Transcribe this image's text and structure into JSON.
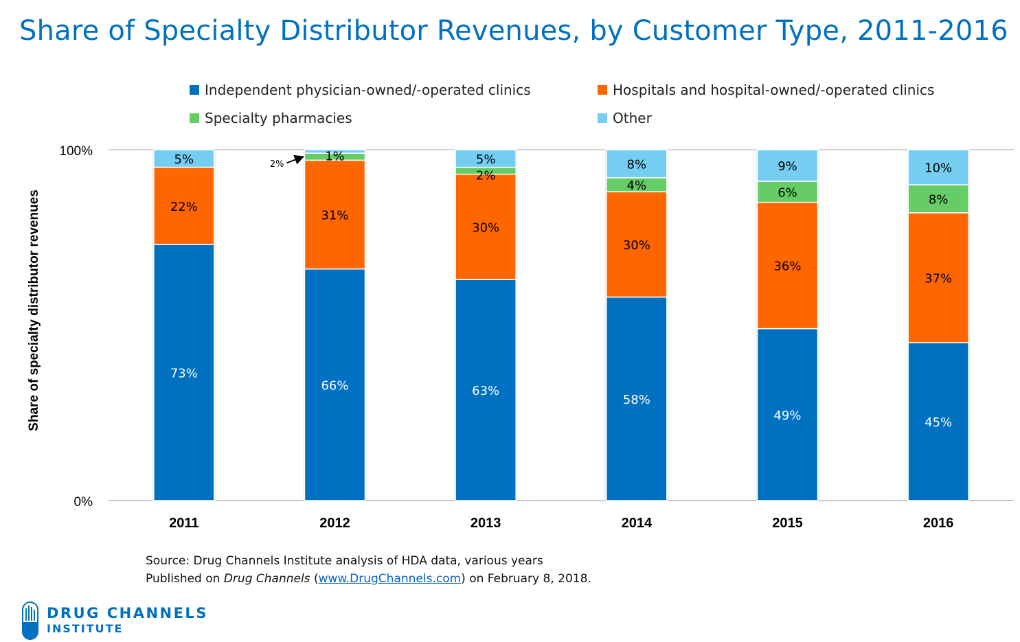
{
  "title": "Share of Specialty Distributor Revenues, by Customer Type, 2011-2016",
  "colors": {
    "independent": "#0070c0",
    "hospitals": "#ff6600",
    "specialty": "#66cc66",
    "other": "#75cdf2",
    "title": "#0070c0"
  },
  "chart_data": {
    "type": "bar",
    "stacked": true,
    "title": "Share of Specialty Distributor Revenues, by Customer Type, 2011-2016",
    "xlabel": "",
    "ylabel": "Share of specialty distributor revenues",
    "ylim": [
      0,
      100
    ],
    "y_ticks": [
      "0%",
      "100%"
    ],
    "categories": [
      "2011",
      "2012",
      "2013",
      "2014",
      "2015",
      "2016"
    ],
    "legend_position": "top",
    "series": [
      {
        "name": "Independent physician-owned/-operated clinics",
        "color": "#0070c0",
        "label_color": "#ffffff",
        "values": [
          73,
          66,
          63,
          58,
          49,
          45
        ]
      },
      {
        "name": "Hospitals and hospital-owned/-operated clinics",
        "color": "#ff6600",
        "label_color": "#000000",
        "values": [
          22,
          31,
          30,
          30,
          36,
          37
        ]
      },
      {
        "name": "Specialty pharmacies",
        "color": "#66cc66",
        "label_color": "#000000",
        "values": [
          0,
          2,
          2,
          4,
          6,
          8
        ]
      },
      {
        "name": "Other",
        "color": "#75cdf2",
        "label_color": "#000000",
        "values": [
          5,
          1,
          5,
          8,
          9,
          10
        ]
      }
    ],
    "annotations": [
      {
        "category": "2012",
        "series": "Specialty pharmacies",
        "text": "2%",
        "callout": "arrow"
      }
    ]
  },
  "legend": {
    "items": [
      {
        "label": "Independent physician-owned/-operated clinics",
        "color": "#0070c0"
      },
      {
        "label": "Hospitals and hospital-owned/-operated clinics",
        "color": "#ff6600"
      },
      {
        "label": "Specialty pharmacies",
        "color": "#66cc66"
      },
      {
        "label": "Other",
        "color": "#75cdf2"
      }
    ]
  },
  "source": {
    "line1": "Source: Drug Channels Institute analysis of HDA data, various years",
    "line2_prefix": "Published on ",
    "line2_italic": "Drug Channels",
    "line2_open": " (",
    "line2_link": "www.DrugChannels.com",
    "line2_suffix": ") on February 8, 2018."
  },
  "logo": {
    "line1": "DRUG CHANNELS",
    "line2": "INSTITUTE"
  }
}
